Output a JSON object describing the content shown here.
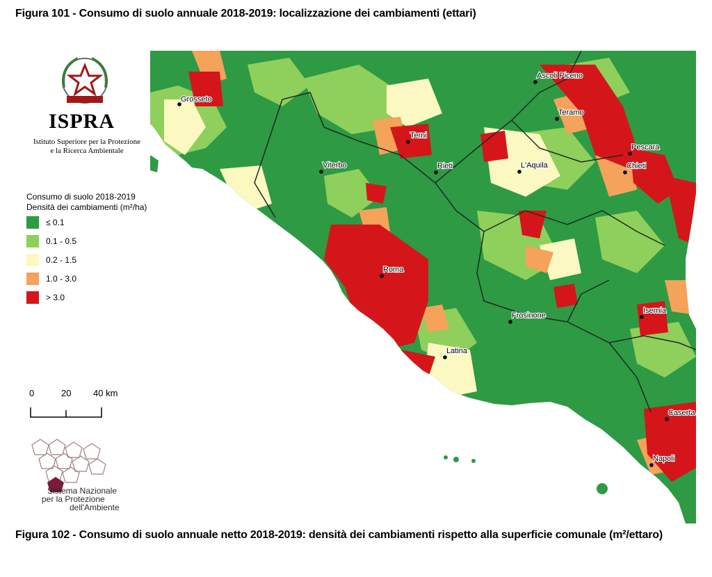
{
  "caption_top": "Figura 101 - Consumo di suolo annuale 2018-2019: localizzazione dei cambiamenti (ettari)",
  "caption_bottom": "Figura 102 - Consumo di suolo annuale netto 2018-2019: densità dei cambiamenti rispetto alla superficie comunale (m²/ettaro)",
  "logo": {
    "name": "ISPRA",
    "subtitle_line1": "Istituto Superiore per la Protezione",
    "subtitle_line2": "e la Ricerca Ambientale",
    "emblem_text": "REPUBBLICA ITALIANA"
  },
  "legend": {
    "title_line1": "Consumo di suolo 2018-2019",
    "title_line2": "Densità dei cambiamenti (m²/ha)",
    "classes": [
      {
        "label": "≤ 0.1",
        "color": "#2e9a44"
      },
      {
        "label": "0.1 - 0.5",
        "color": "#8fcf5c"
      },
      {
        "label": "0.2 - 1.5",
        "color": "#fbf8c2"
      },
      {
        "label": "1.0 - 3.0",
        "color": "#f5a25a"
      },
      {
        "label": "> 3.0",
        "color": "#d4161a"
      }
    ]
  },
  "scale_bar": {
    "ticks": [
      "0",
      "20",
      "40 km"
    ]
  },
  "snpa": {
    "line1": "Sistema Nazionale",
    "line2": "per la Protezione",
    "line3": "dell'Ambiente"
  },
  "colors": {
    "sea": "#ffffff",
    "border": "#1f2a22"
  },
  "cities": [
    {
      "name": "Grosseto"
    },
    {
      "name": "Terni"
    },
    {
      "name": "Viterbo"
    },
    {
      "name": "Rieti"
    },
    {
      "name": "L'Aquila"
    },
    {
      "name": "Ascoli Piceno"
    },
    {
      "name": "Teramo"
    },
    {
      "name": "Pescara"
    },
    {
      "name": "Chieti"
    },
    {
      "name": "Roma"
    },
    {
      "name": "Frosinone"
    },
    {
      "name": "Latina"
    },
    {
      "name": "Isernia"
    },
    {
      "name": "Caserta"
    },
    {
      "name": "Napoli"
    }
  ]
}
